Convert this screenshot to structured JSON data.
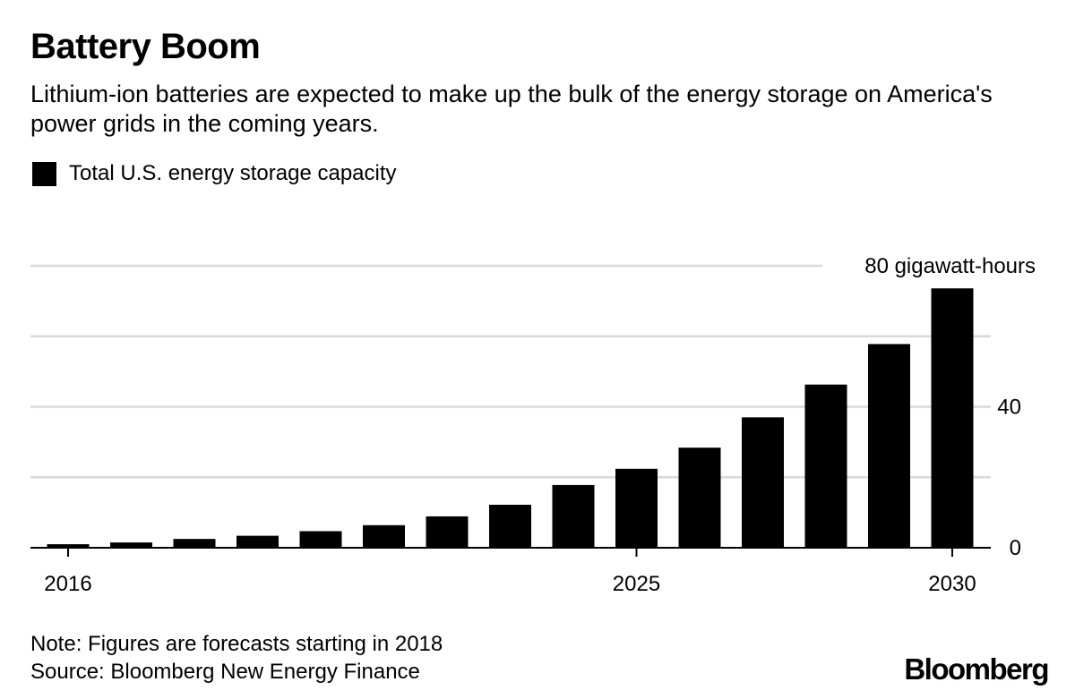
{
  "title": "Battery Boom",
  "subtitle": "Lithium-ion batteries are expected to make up the bulk of the energy storage on America's power grids in the coming years.",
  "legend": {
    "label": "Total U.S. energy storage capacity"
  },
  "note": "Note: Figures are forecasts starting in 2018",
  "source": "Source: Bloomberg New Energy Finance",
  "brand": "Bloomberg",
  "chart_data": {
    "type": "bar",
    "categories": [
      2016,
      2017,
      2018,
      2019,
      2020,
      2021,
      2022,
      2023,
      2024,
      2025,
      2026,
      2027,
      2028,
      2029,
      2030
    ],
    "values": [
      1,
      1.5,
      2.5,
      3.4,
      4.7,
      6.4,
      8.9,
      12.2,
      17.8,
      22.4,
      28.4,
      37.0,
      46.3,
      57.8,
      73.6
    ],
    "series": [
      {
        "name": "Total U.S. energy storage capacity",
        "values": [
          1,
          1.5,
          2.5,
          3.4,
          4.7,
          6.4,
          8.9,
          12.2,
          17.8,
          22.4,
          28.4,
          37.0,
          46.3,
          57.8,
          73.6
        ]
      }
    ],
    "ylim": [
      0,
      80
    ],
    "y_ticks": [
      0,
      20,
      40,
      60,
      80
    ],
    "y_tick_labels": [
      "0",
      "",
      "40",
      "",
      "80 gigawatt-hours"
    ],
    "x_tick_labels": [
      {
        "value": 2016,
        "label": "2016"
      },
      {
        "value": 2025,
        "label": "2025"
      },
      {
        "value": 2030,
        "label": "2030"
      }
    ],
    "bar_color": "#000000",
    "grid": true,
    "legend_position": "top-left"
  }
}
